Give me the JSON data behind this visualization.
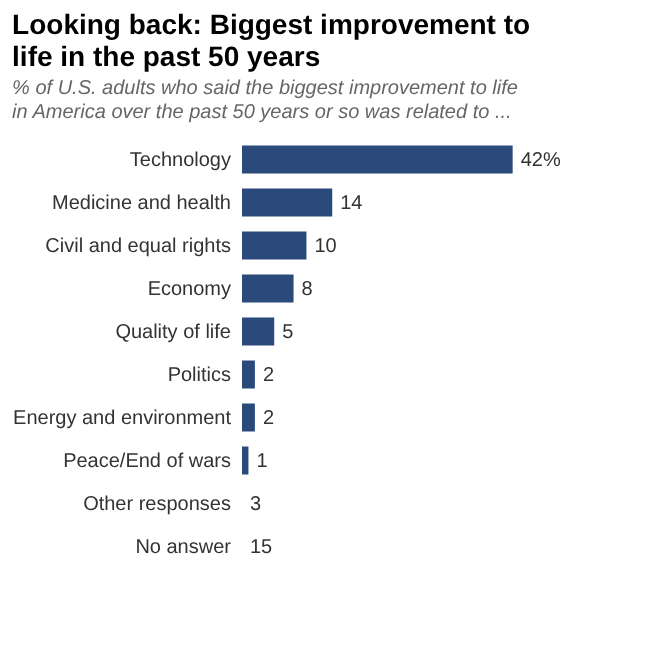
{
  "chart_data": {
    "type": "bar",
    "orientation": "horizontal",
    "title": "Looking back: Biggest improvement to life in the past 50 years",
    "subtitle": "% of U.S. adults who said the biggest improvement to life in America over the past 50 years or so was related to ...",
    "categories": [
      "Technology",
      "Medicine and health",
      "Civil and equal rights",
      "Economy",
      "Quality of life",
      "Politics",
      "Energy and environment",
      "Peace/End of wars",
      "Other responses",
      "No answer"
    ],
    "values": [
      42,
      14,
      10,
      8,
      5,
      2,
      2,
      1,
      null,
      null
    ],
    "value_labels": [
      "42%",
      "14",
      "10",
      "8",
      "5",
      "2",
      "2",
      "1",
      "3",
      "15"
    ],
    "color": "#2a4a7b",
    "grid": false
  }
}
